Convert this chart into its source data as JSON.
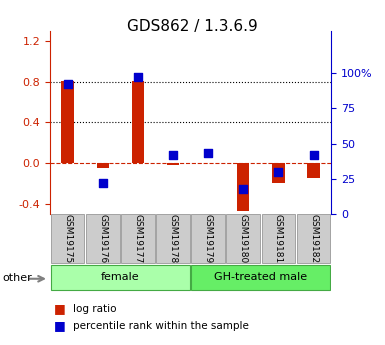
{
  "title": "GDS862 / 1.3.6.9",
  "samples": [
    "GSM19175",
    "GSM19176",
    "GSM19177",
    "GSM19178",
    "GSM19179",
    "GSM19180",
    "GSM19181",
    "GSM19182"
  ],
  "log_ratio": [
    0.81,
    -0.05,
    0.81,
    -0.02,
    0.0,
    -0.47,
    -0.2,
    -0.15
  ],
  "percentile_rank": [
    92,
    22,
    97,
    42,
    43,
    18,
    30,
    42
  ],
  "ylim_left": [
    -0.5,
    1.3
  ],
  "ylim_right": [
    0,
    130
  ],
  "yticks_left": [
    -0.4,
    0.0,
    0.4,
    0.8,
    1.2
  ],
  "yticks_right": [
    0,
    25,
    50,
    75,
    100
  ],
  "ytick_labels_right": [
    "0",
    "25",
    "50",
    "75",
    "100%"
  ],
  "hlines": [
    0.8,
    0.4
  ],
  "bar_color": "#cc2200",
  "scatter_color": "#0000cc",
  "zero_line_color": "#cc2200",
  "group_labels": [
    "female",
    "GH-treated male"
  ],
  "group_ranges": [
    [
      0,
      3
    ],
    [
      4,
      7
    ]
  ],
  "group_colors": [
    "#aaffaa",
    "#66ee66"
  ],
  "legend_items": [
    "log ratio",
    "percentile rank within the sample"
  ],
  "legend_colors": [
    "#cc2200",
    "#0000cc"
  ],
  "other_label": "other",
  "bar_width": 0.35,
  "scatter_marker": "s",
  "scatter_size": 28
}
